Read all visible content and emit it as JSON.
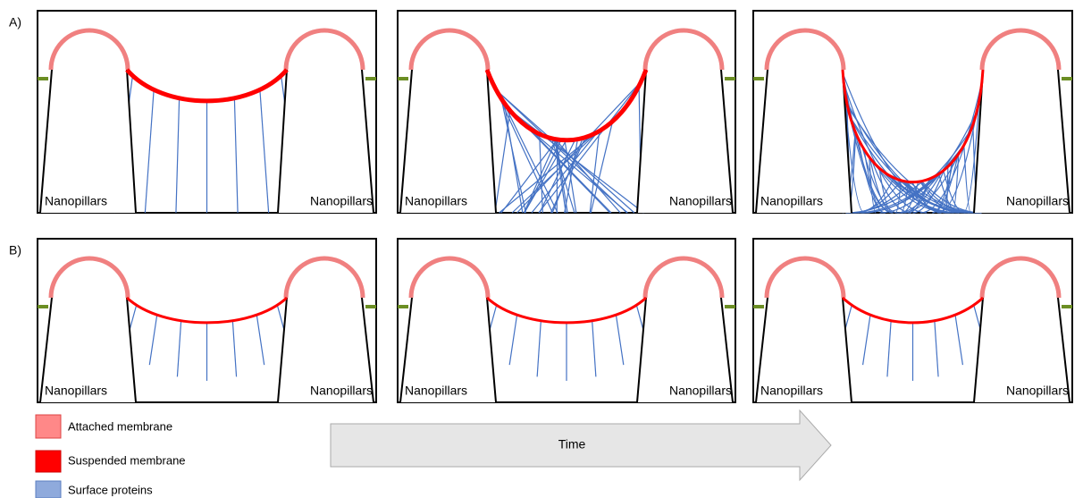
{
  "rows": [
    {
      "label": "A)",
      "panels": [
        {
          "left_label": "Nanopillars",
          "right_label": "Nanopillars"
        },
        {
          "left_label": "Nanopillars",
          "right_label": "Nanopillars"
        },
        {
          "left_label": "Nanopillars",
          "right_label": "Nanopillars"
        }
      ]
    },
    {
      "label": "B)",
      "panels": [
        {
          "left_label": "Nanopillars",
          "right_label": "Nanopillars"
        },
        {
          "left_label": "Nanopillars",
          "right_label": "Nanopillars"
        },
        {
          "left_label": "Nanopillars",
          "right_label": "Nanopillars"
        }
      ]
    }
  ],
  "legend": [
    {
      "label": "Attached membrane"
    },
    {
      "label": "Suspended membrane"
    },
    {
      "label": "Surface proteins"
    }
  ],
  "arrow_label": "Time"
}
